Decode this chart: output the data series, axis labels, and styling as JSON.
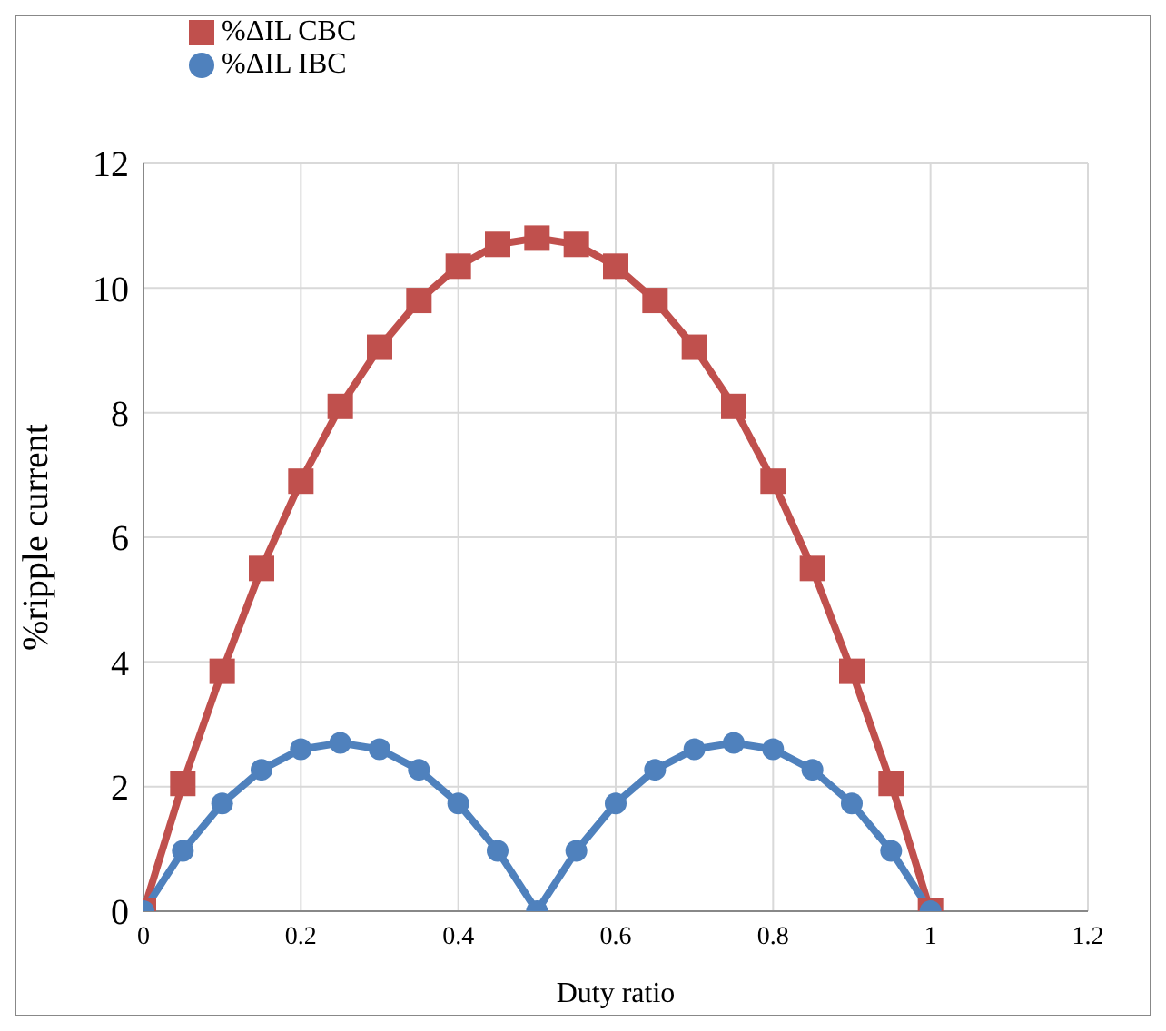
{
  "chart_data": {
    "type": "line",
    "xlabel": "Duty ratio",
    "ylabel": "%ripple current",
    "x": [
      0,
      0.05,
      0.1,
      0.15,
      0.2,
      0.25,
      0.3,
      0.35,
      0.4,
      0.45,
      0.5,
      0.55,
      0.6,
      0.65,
      0.7,
      0.75,
      0.8,
      0.85,
      0.9,
      0.95,
      1
    ],
    "series": [
      {
        "name": "%ΔIL CBC",
        "color": "#c0504d",
        "marker": "square",
        "values": [
          0,
          2.05,
          3.85,
          5.5,
          6.9,
          8.1,
          9.05,
          9.8,
          10.35,
          10.7,
          10.8,
          10.7,
          10.35,
          9.8,
          9.05,
          8.1,
          6.9,
          5.5,
          3.85,
          2.05,
          0
        ]
      },
      {
        "name": "%ΔIL IBC",
        "color": "#4f81bd",
        "marker": "circle",
        "values": [
          0,
          0.97,
          1.73,
          2.27,
          2.6,
          2.7,
          2.6,
          2.27,
          1.73,
          0.97,
          0,
          0.97,
          1.73,
          2.27,
          2.6,
          2.7,
          2.6,
          2.27,
          1.73,
          0.97,
          0
        ]
      }
    ],
    "xlim": [
      0,
      1.2
    ],
    "xticks": [
      0,
      0.2,
      0.4,
      0.6,
      0.8,
      1,
      1.2
    ],
    "ylim": [
      0,
      12
    ],
    "yticks": [
      0,
      2,
      4,
      6,
      8,
      10,
      12
    ],
    "grid": true,
    "legend": "top left",
    "line_style": "solid"
  }
}
